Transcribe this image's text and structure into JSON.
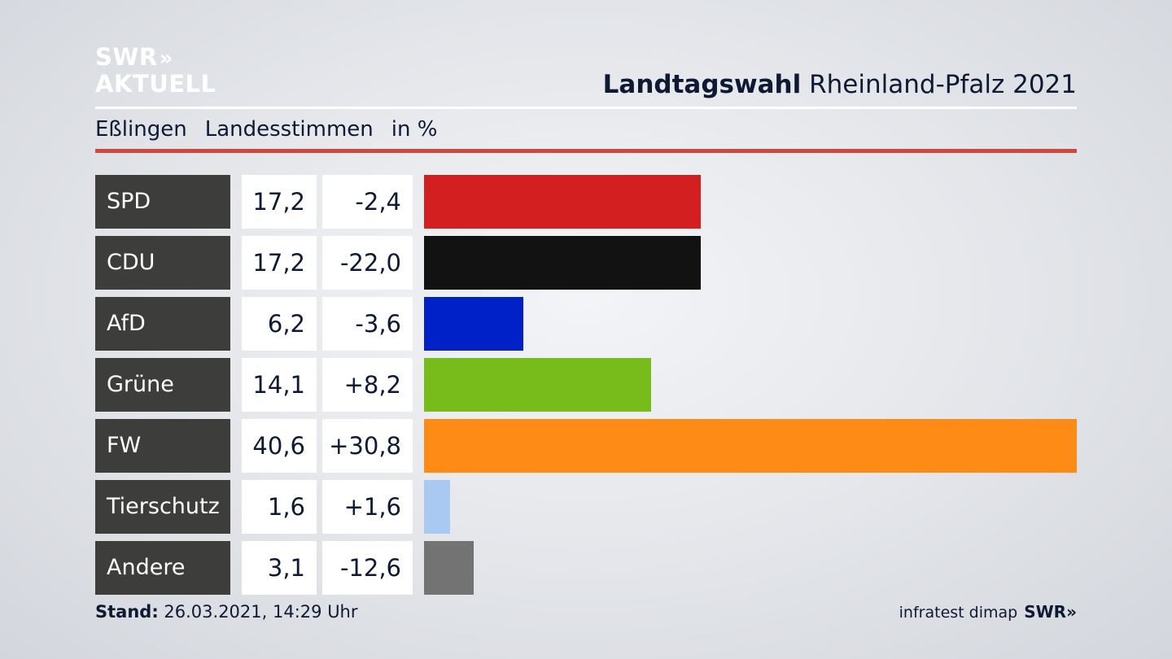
{
  "logo": {
    "line1": "SWR",
    "arrows": "»",
    "line2": "AKTUELL"
  },
  "header": {
    "title_bold": "Landtagswahl",
    "title_rest": "Rheinland-Pfalz 2021"
  },
  "subheader": {
    "location": "Eßlingen",
    "vote_type": "Landesstimmen",
    "unit": "in %"
  },
  "footer": {
    "stand_label": "Stand:",
    "stand_value": "26.03.2021, 14:29 Uhr",
    "source": "infratest dimap",
    "source_brand": "SWR»"
  },
  "chart_data": {
    "type": "bar",
    "categories": [
      "SPD",
      "CDU",
      "AfD",
      "Grüne",
      "FW",
      "Tierschutz",
      "Andere"
    ],
    "values": [
      17.2,
      17.2,
      6.2,
      14.1,
      40.6,
      1.6,
      3.1
    ],
    "values_text": [
      "17,2",
      "17,2",
      "6,2",
      "14,1",
      "40,6",
      "1,6",
      "3,1"
    ],
    "changes": [
      -2.4,
      -22.0,
      -3.6,
      8.2,
      30.8,
      1.6,
      -12.6
    ],
    "changes_text": [
      "-2,4",
      "-22,0",
      "-3,6",
      "+8,2",
      "+30,8",
      "+1,6",
      "-12,6"
    ],
    "colors": [
      "#d41f20",
      "#121212",
      "#0020c8",
      "#78bc1b",
      "#ff8b17",
      "#a9c9f2",
      "#737373"
    ],
    "xlim": [
      0,
      40.6
    ],
    "grid": false
  }
}
